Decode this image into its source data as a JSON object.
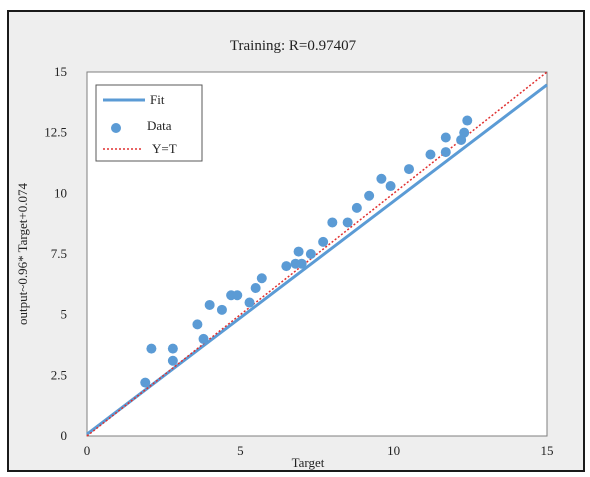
{
  "chart_data": {
    "type": "scatter",
    "title": "Training: R=0.97407",
    "xlabel": "Target",
    "ylabel": "output~0.96* Target+0.074",
    "xlim": [
      0,
      15
    ],
    "ylim": [
      0,
      15
    ],
    "x_ticks": [
      0,
      5,
      10,
      15
    ],
    "x_tick_labels": [
      "0",
      "5",
      "10",
      "15"
    ],
    "y_ticks": [
      0,
      2.5,
      5,
      7.5,
      10,
      12.5,
      15
    ],
    "y_tick_labels": [
      "0",
      "2.5",
      "5",
      "7.5",
      "10",
      "12.5",
      "15"
    ],
    "grid": false,
    "legend_position": "top-left",
    "legend": [
      {
        "label": "Fit",
        "style": "line",
        "color": "#5b9bd5"
      },
      {
        "label": "Data",
        "style": "marker",
        "color": "#5b9bd5"
      },
      {
        "label": "Y=T",
        "style": "dotted",
        "color": "#e03030"
      }
    ],
    "fit_line": {
      "slope": 0.96,
      "intercept": 0.074,
      "x_range": [
        0,
        15
      ],
      "color": "#5b9bd5"
    },
    "identity_line": {
      "x_range": [
        0,
        15
      ],
      "color": "#e03030"
    },
    "series": [
      {
        "name": "Data",
        "color": "#5b9bd5",
        "points": [
          [
            1.9,
            2.2
          ],
          [
            2.1,
            3.6
          ],
          [
            2.8,
            3.6
          ],
          [
            2.8,
            3.1
          ],
          [
            3.6,
            4.6
          ],
          [
            3.8,
            4.0
          ],
          [
            4.0,
            5.4
          ],
          [
            4.4,
            5.2
          ],
          [
            4.7,
            5.8
          ],
          [
            4.9,
            5.8
          ],
          [
            5.3,
            5.5
          ],
          [
            5.5,
            6.1
          ],
          [
            5.7,
            6.5
          ],
          [
            6.5,
            7.0
          ],
          [
            6.8,
            7.1
          ],
          [
            6.9,
            7.6
          ],
          [
            7.0,
            7.1
          ],
          [
            7.3,
            7.5
          ],
          [
            7.7,
            8.0
          ],
          [
            8.0,
            8.8
          ],
          [
            8.5,
            8.8
          ],
          [
            8.8,
            9.4
          ],
          [
            9.2,
            9.9
          ],
          [
            9.6,
            10.6
          ],
          [
            9.9,
            10.3
          ],
          [
            10.5,
            11.0
          ],
          [
            11.2,
            11.6
          ],
          [
            11.7,
            11.7
          ],
          [
            11.7,
            12.3
          ],
          [
            12.2,
            12.2
          ],
          [
            12.3,
            12.5
          ],
          [
            12.4,
            13.0
          ]
        ]
      }
    ]
  }
}
